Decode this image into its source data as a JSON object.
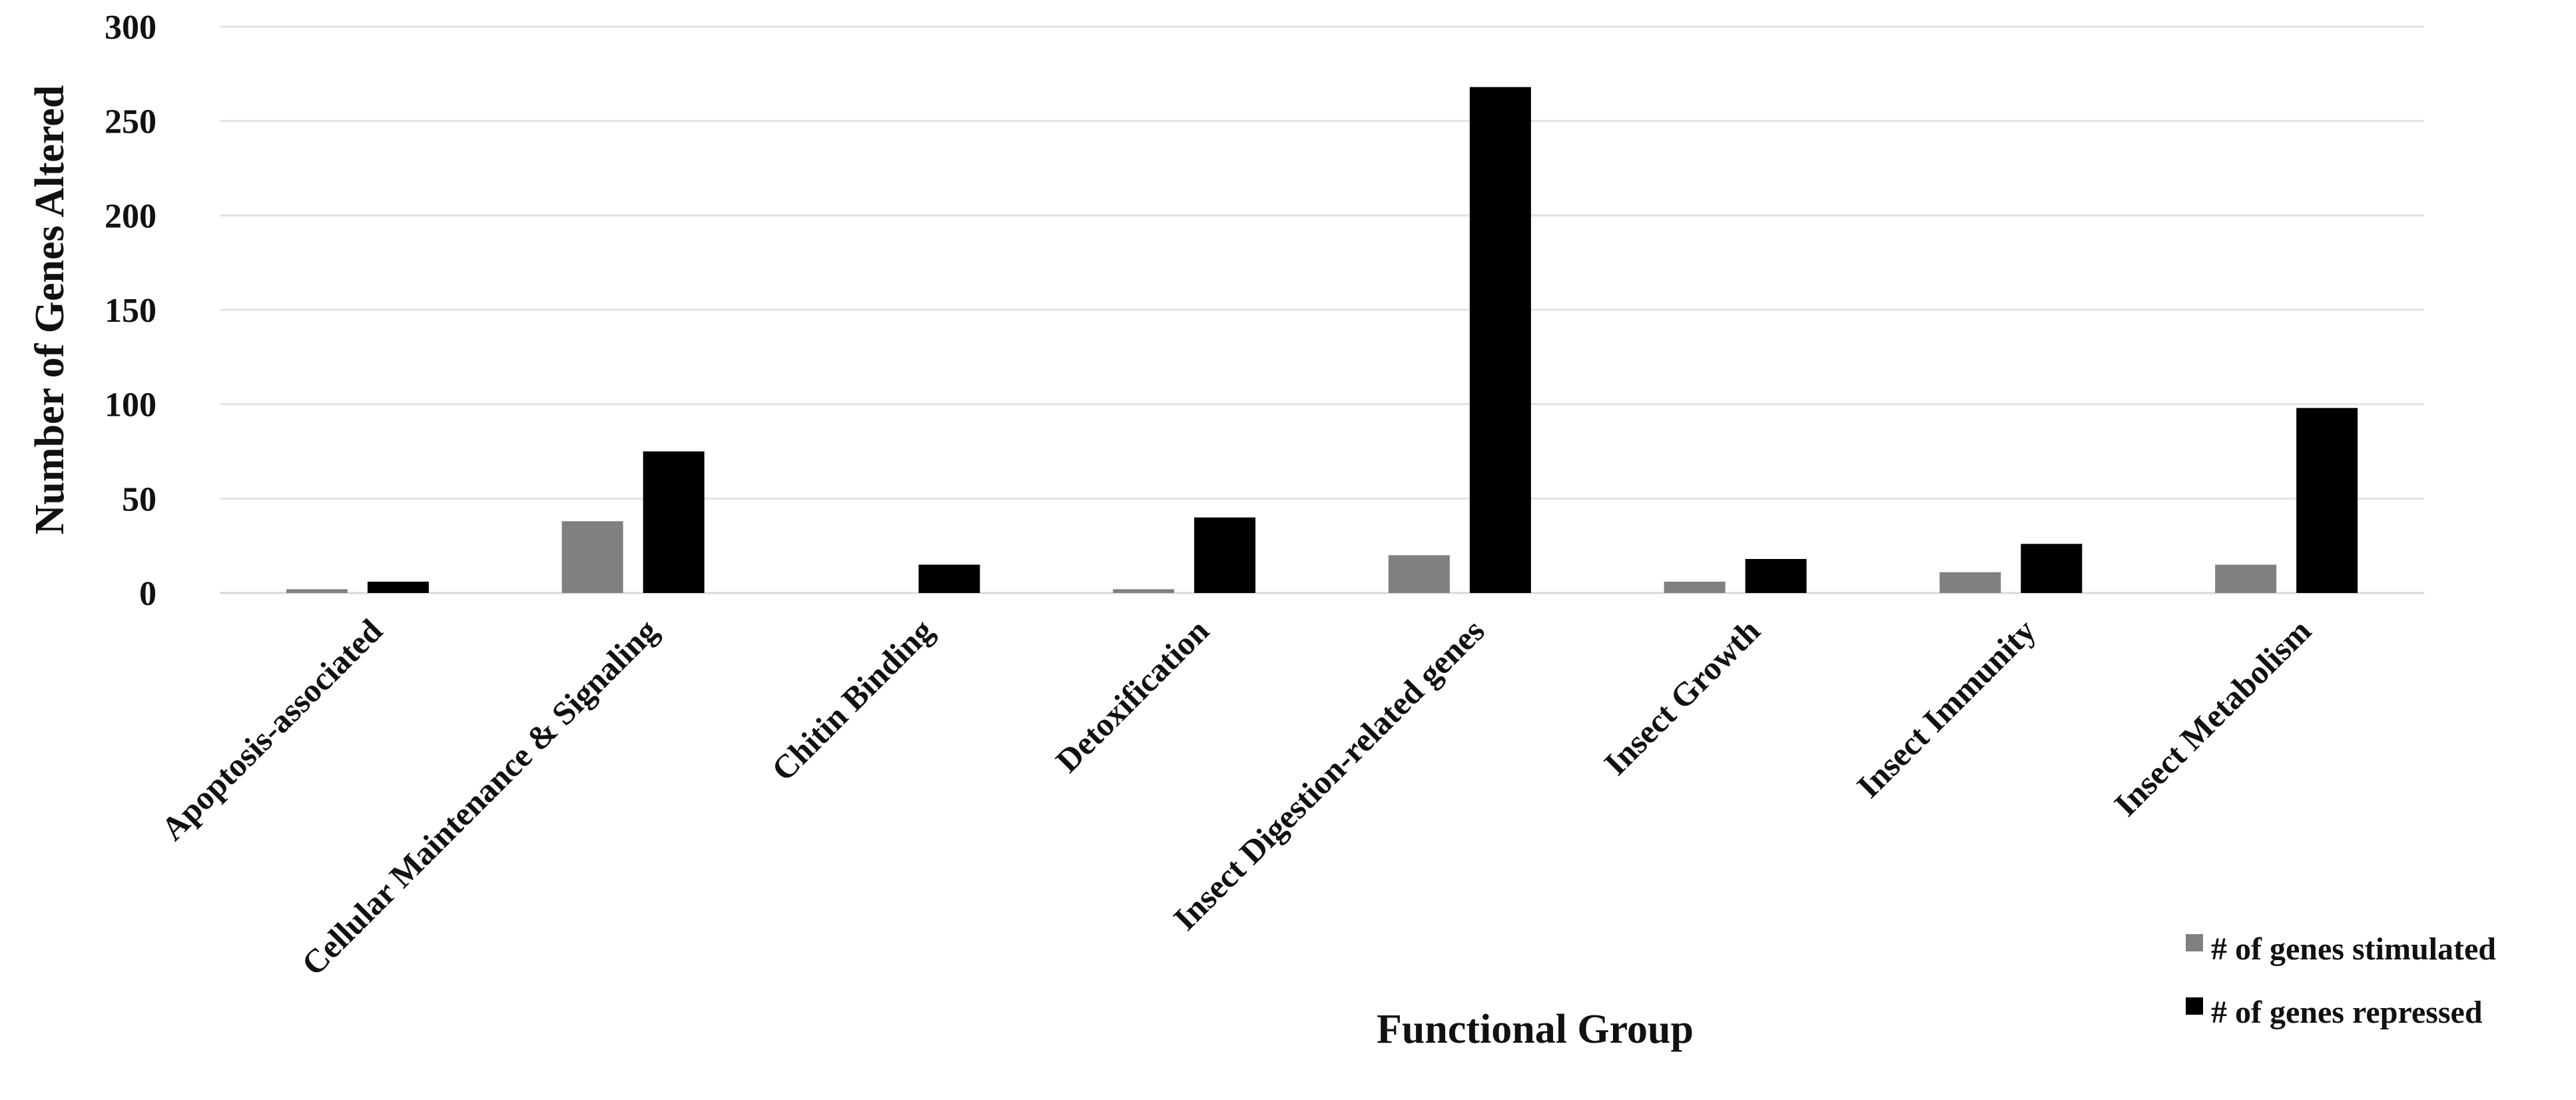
{
  "chart_data": {
    "type": "bar",
    "title": "",
    "xlabel": "Functional Group",
    "ylabel": "Number of Genes Altered",
    "ylim": [
      0,
      300
    ],
    "yticks": [
      0,
      50,
      100,
      150,
      200,
      250,
      300
    ],
    "grid": "horizontal",
    "legend_position": "bottom-right",
    "categories": [
      "Apoptosis-associated",
      "Cellular Maintenance & Signaling",
      "Chitin Binding",
      "Detoxification",
      "Insect Digestion-related genes",
      "Insect Growth",
      "Insect Immunity",
      "Insect Metabolism"
    ],
    "series": [
      {
        "name": "# of genes stimulated",
        "color": "#808080",
        "values": [
          2,
          38,
          0,
          2,
          20,
          6,
          11,
          15
        ]
      },
      {
        "name": "# of genes repressed",
        "color": "#000000",
        "values": [
          6,
          75,
          15,
          40,
          268,
          18,
          26,
          98
        ]
      }
    ]
  }
}
